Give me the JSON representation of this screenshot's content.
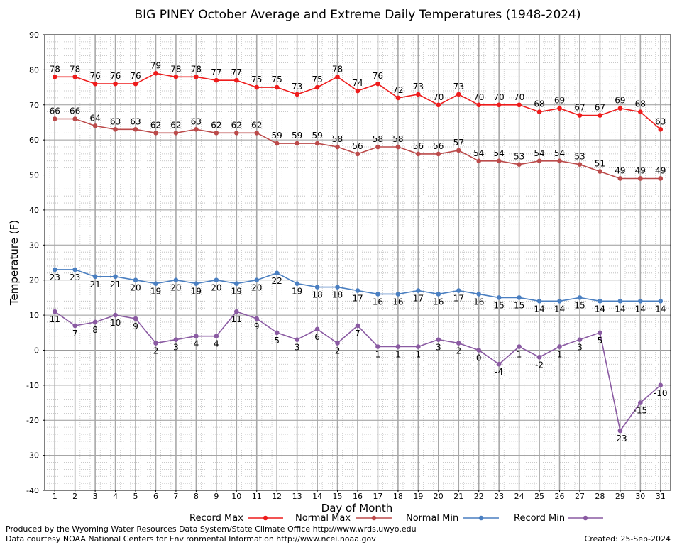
{
  "chart_data": {
    "type": "line",
    "title": "BIG PINEY October Average and Extreme Daily Temperatures (1948-2024)",
    "xlabel": "Day of Month",
    "ylabel": "Temperature (F)",
    "ylim": [
      -40,
      90
    ],
    "yticks": [
      "-40",
      "-30",
      "-20",
      "-10",
      "0",
      "10",
      "20",
      "30",
      "40",
      "50",
      "60",
      "70",
      "80",
      "90"
    ],
    "grid": true,
    "legend_position": "bottom",
    "x": [
      1,
      2,
      3,
      4,
      5,
      6,
      7,
      8,
      9,
      10,
      11,
      12,
      13,
      14,
      15,
      16,
      17,
      18,
      19,
      20,
      21,
      22,
      23,
      24,
      25,
      26,
      27,
      28,
      29,
      30,
      31
    ],
    "x_tick_labels": [
      "1",
      "2",
      "3",
      "4",
      "5",
      "6",
      "7",
      "8",
      "9",
      "10",
      "11",
      "12",
      "13",
      "14",
      "15",
      "16",
      "17",
      "18",
      "19",
      "20",
      "21",
      "22",
      "23",
      "24",
      "25",
      "26",
      "27",
      "28",
      "29",
      "30",
      "31"
    ],
    "series": [
      {
        "name": "Record Max",
        "color": "#ee1c1c",
        "label_position": "above",
        "values": [
          78,
          78,
          76,
          76,
          76,
          79,
          78,
          78,
          77,
          77,
          75,
          75,
          73,
          75,
          78,
          74,
          76,
          72,
          73,
          70,
          73,
          70,
          70,
          70,
          68,
          69,
          67,
          67,
          69,
          68,
          63
        ]
      },
      {
        "name": "Normal Max",
        "color": "#bb4a4a",
        "label_position": "above",
        "values": [
          66,
          66,
          64,
          63,
          63,
          62,
          62,
          63,
          62,
          62,
          62,
          59,
          59,
          59,
          58,
          56,
          58,
          58,
          56,
          56,
          57,
          54,
          54,
          53,
          54,
          54,
          53,
          51,
          49,
          49,
          49
        ]
      },
      {
        "name": "Normal Min",
        "color": "#4a7fc1",
        "label_position": "below",
        "values": [
          23,
          23,
          21,
          21,
          20,
          19,
          20,
          19,
          20,
          19,
          20,
          22,
          19,
          18,
          18,
          17,
          16,
          16,
          17,
          16,
          17,
          16,
          15,
          15,
          14,
          14,
          15,
          14,
          14,
          14,
          14
        ]
      },
      {
        "name": "Record Min",
        "color": "#8a5aa2",
        "label_position": "below",
        "values": [
          11,
          7,
          8,
          10,
          9,
          2,
          3,
          4,
          4,
          11,
          9,
          5,
          3,
          6,
          2,
          7,
          1,
          1,
          1,
          3,
          2,
          0,
          -4,
          1,
          -2,
          1,
          3,
          5,
          -23,
          -15,
          -10
        ]
      }
    ]
  },
  "footer": {
    "produced_by": "Produced by the Wyoming Water Resources Data System/State Climate Office http://www.wrds.uwyo.edu",
    "courtesy": "Data courtesy NOAA National Centers for Environmental Information http://www.ncei.noaa.gov",
    "created": "Created: 25-Sep-2024"
  }
}
